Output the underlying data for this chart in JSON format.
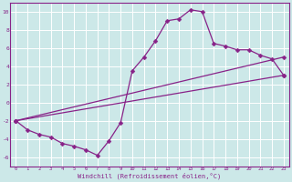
{
  "xlabel": "Windchill (Refroidissement éolien,°C)",
  "bg_color": "#cce8e8",
  "line_color": "#882288",
  "grid_color": "#aacccc",
  "xlim": [
    -0.5,
    23.5
  ],
  "ylim": [
    -7,
    11
  ],
  "yticks": [
    -6,
    -4,
    -2,
    0,
    2,
    4,
    6,
    8,
    10
  ],
  "xticks": [
    0,
    1,
    2,
    3,
    4,
    5,
    6,
    7,
    8,
    9,
    10,
    11,
    12,
    13,
    14,
    15,
    16,
    17,
    18,
    19,
    20,
    21,
    22,
    23
  ],
  "line1_x": [
    0,
    1,
    2,
    3,
    4,
    5,
    6,
    7,
    8,
    9,
    10,
    11,
    12,
    13,
    14,
    15,
    16,
    17,
    18,
    19,
    20,
    21,
    22,
    23
  ],
  "line1_y": [
    -2.0,
    -3.0,
    -3.5,
    -3.8,
    -4.5,
    -4.8,
    -5.2,
    -5.8,
    -4.2,
    -2.2,
    3.5,
    5.0,
    6.8,
    9.0,
    9.2,
    10.2,
    10.0,
    6.5,
    6.2,
    5.8,
    5.8,
    5.2,
    4.8,
    3.0
  ],
  "line2_x": [
    0,
    23
  ],
  "line2_y": [
    -2.0,
    3.0
  ],
  "line3_x": [
    0,
    23
  ],
  "line3_y": [
    -2.0,
    5.0
  ],
  "marker": "D",
  "markersize": 2.5,
  "linewidth": 0.9
}
